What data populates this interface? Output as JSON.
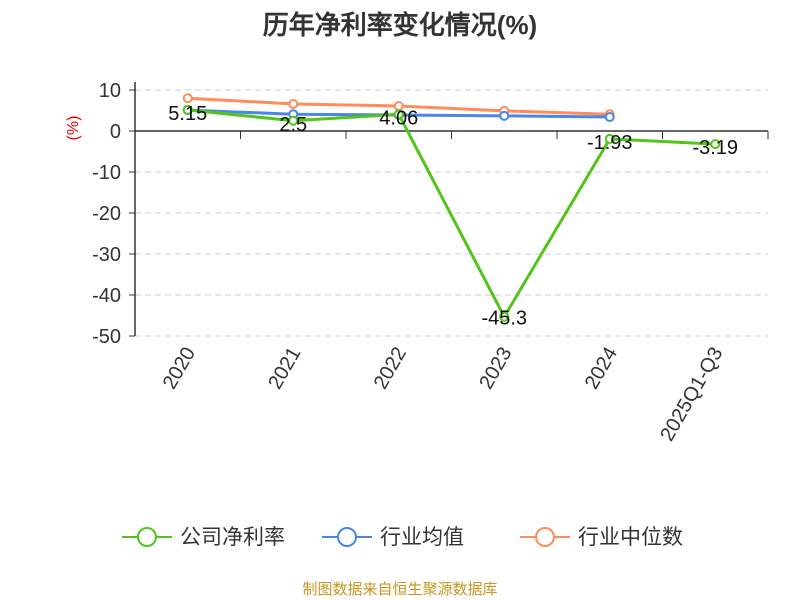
{
  "chart_data": {
    "type": "line",
    "title": "历年净利率变化情况(%)",
    "ylabel": "(%)",
    "categories": [
      "2020",
      "2021",
      "2022",
      "2023",
      "2024",
      "2025Q1-Q3"
    ],
    "ylim": [
      -50,
      10
    ],
    "yticks": [
      10,
      0,
      -10,
      -20,
      -30,
      -40,
      -50
    ],
    "grid": true,
    "legend_position": "bottom",
    "series": [
      {
        "name": "公司净利率",
        "color": "#52c41a",
        "values": [
          5.15,
          2.5,
          4.06,
          -45.3,
          -1.93,
          -3.19
        ],
        "labels": [
          "5.15",
          "2.5",
          "4.06",
          "-45.3",
          "-1.93",
          "-3.19"
        ]
      },
      {
        "name": "行业均值",
        "color": "#4a86e8",
        "values": [
          5.1,
          4.1,
          3.9,
          3.7,
          3.4,
          null
        ]
      },
      {
        "name": "行业中位数",
        "color": "#ff8c5a",
        "values": [
          8.0,
          6.6,
          6.1,
          4.9,
          4.1,
          null
        ]
      }
    ]
  },
  "footer": {
    "source": "制图数据来自恒生聚源数据库"
  }
}
